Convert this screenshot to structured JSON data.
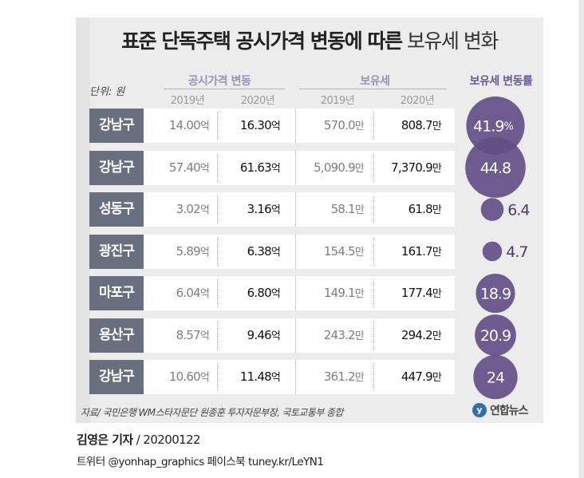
{
  "title": {
    "bold": "표준 단독주택 공시가격 변동에 따른",
    "light": " 보유세 변화"
  },
  "unit": "단위: 원",
  "headers": {
    "price_change": "공시가격 변동",
    "tax": "보유세",
    "tax_rate": "보유세 변동률",
    "year1": "2019년",
    "year2": "2020년"
  },
  "colors": {
    "bubble": "#634e87",
    "bubble_dark": "#4d3b6d",
    "district_bg": "#6a6f80"
  },
  "chart_data": {
    "type": "table",
    "columns": [
      "공시가격 2019년",
      "공시가격 2020년",
      "보유세 2019년",
      "보유세 2020년",
      "보유세 변동률"
    ],
    "rows": [
      {
        "district": "강남구",
        "price2019": "14.00",
        "price2020": "16.30",
        "tax2019": "570.0",
        "tax2020": "808.7",
        "rate": 41.9,
        "rate_label": "41.9",
        "rate_suffix": "%"
      },
      {
        "district": "강남구",
        "price2019": "57.40",
        "price2020": "61.63",
        "tax2019": "5,090.9",
        "tax2020": "7,370.9",
        "rate": 44.8,
        "rate_label": "44.8",
        "rate_suffix": ""
      },
      {
        "district": "성동구",
        "price2019": "3.02",
        "price2020": "3.16",
        "tax2019": "58.1",
        "tax2020": "61.8",
        "rate": 6.4,
        "rate_label": "6.4",
        "rate_suffix": ""
      },
      {
        "district": "광진구",
        "price2019": "5.89",
        "price2020": "6.38",
        "tax2019": "154.5",
        "tax2020": "161.7",
        "rate": 4.7,
        "rate_label": "4.7",
        "rate_suffix": ""
      },
      {
        "district": "마포구",
        "price2019": "6.04",
        "price2020": "6.80",
        "tax2019": "149.1",
        "tax2020": "177.4",
        "rate": 18.9,
        "rate_label": "18.9",
        "rate_suffix": ""
      },
      {
        "district": "용산구",
        "price2019": "8.57",
        "price2020": "9.46",
        "tax2019": "243.2",
        "tax2020": "294.2",
        "rate": 20.9,
        "rate_label": "20.9",
        "rate_suffix": ""
      },
      {
        "district": "강남구",
        "price2019": "10.60",
        "price2020": "11.48",
        "tax2019": "361.2",
        "tax2020": "447.9",
        "rate": 24,
        "rate_label": "24",
        "rate_suffix": ""
      }
    ],
    "units": {
      "price": "억",
      "tax": "만"
    }
  },
  "source": "자료/ 국민은행 WM스타자문단 원종훈 투자자문부장, 국토교통부 종합",
  "logo": {
    "mark": "y",
    "text": "연합뉴스",
    "icon": "yonhap-logo"
  },
  "credit": {
    "name": "김영은 기자",
    "date": " / 20200122"
  },
  "social": "트위터 @yonhap_graphics  페이스북 tuney.kr/LeYN1"
}
